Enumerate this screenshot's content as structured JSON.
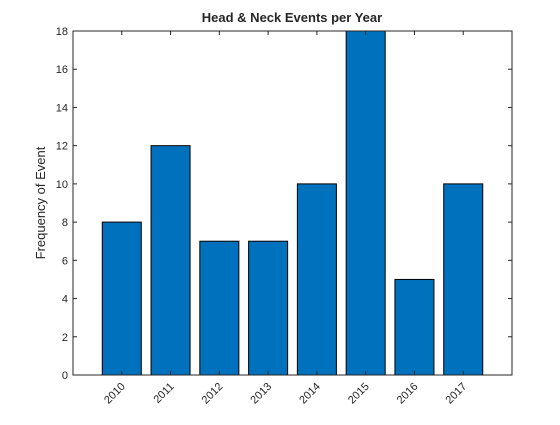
{
  "chart_data": {
    "type": "bar",
    "title": "Head & Neck Events per Year",
    "xlabel": "",
    "ylabel": "Frequency of Event",
    "categories": [
      "2010",
      "2011",
      "2012",
      "2013",
      "2014",
      "2015",
      "2016",
      "2017"
    ],
    "values": [
      8,
      12,
      7,
      7,
      10,
      18,
      5,
      10
    ],
    "ylim": [
      0,
      18
    ],
    "yticks": [
      0,
      2,
      4,
      6,
      8,
      10,
      12,
      14,
      16,
      18
    ],
    "grid": false,
    "bar_color": "#0072BD",
    "edge_color": "#000000"
  }
}
